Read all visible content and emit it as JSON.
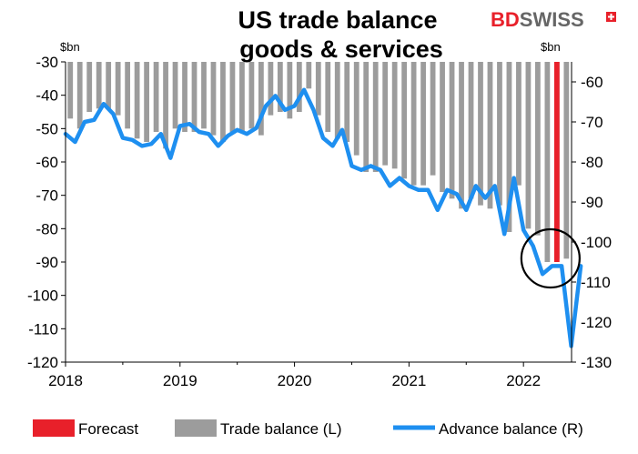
{
  "brand": {
    "part1": "BD",
    "part2": "SWISS"
  },
  "colors": {
    "trade": "#9c9c9c",
    "forecast": "#e8202a",
    "advance": "#1e8ff0",
    "logo_red": "#e8202a"
  },
  "chart_data": {
    "type": "bar",
    "title_lines": [
      "US trade balance",
      "goods & services"
    ],
    "left_axis": {
      "unit": "$bn",
      "ylim": [
        -120,
        -30
      ],
      "ticks": [
        -30,
        -40,
        -50,
        -60,
        -70,
        -80,
        -90,
        -100,
        -110,
        -120
      ]
    },
    "right_axis": {
      "unit": "$bn",
      "ylim": [
        -130,
        -55
      ],
      "ticks": [
        -60,
        -70,
        -80,
        -90,
        -100,
        -110,
        -120,
        -130
      ]
    },
    "x_axis": {
      "ticks": [
        "2018",
        "2019",
        "2020",
        "2021",
        "2022"
      ],
      "range": [
        2018.0,
        2022.42
      ]
    },
    "legend": {
      "forecast": "Forecast",
      "trade": "Trade balance (L)",
      "advance": "Advance balance (R)"
    },
    "series": [
      {
        "name": "Trade balance (L)",
        "axis": "left",
        "start": 2018.0,
        "values": [
          -47,
          -50,
          -45,
          -44,
          -44,
          -46,
          -50,
          -53,
          -54,
          -51,
          -56,
          -50,
          -51,
          -51,
          -50,
          -52,
          -54,
          -51,
          -51,
          -50,
          -52,
          -46,
          -45,
          -47,
          -45,
          -38,
          -46,
          -51,
          -53,
          -54,
          -58,
          -63,
          -63,
          -61,
          -62,
          -65,
          -67,
          -67,
          -64,
          -69,
          -71,
          -74,
          -71,
          -73,
          -74,
          -73,
          -81,
          -67,
          -80,
          -82,
          -90,
          -89,
          -89
        ]
      },
      {
        "name": "Forecast",
        "axis": "left",
        "start": 2022.25,
        "values": [
          -90
        ]
      },
      {
        "name": "Advance balance (R)",
        "axis": "right",
        "start": 2018.0,
        "values": [
          -73,
          -75,
          -70,
          -69.5,
          -65.5,
          -68,
          -74,
          -74.5,
          -76,
          -75.5,
          -73,
          -79,
          -71,
          -70.5,
          -72.5,
          -73,
          -76,
          -73.5,
          -72,
          -73,
          -71.5,
          -66,
          -63.5,
          -67,
          -66,
          -62,
          -67,
          -74,
          -76,
          -72,
          -81,
          -82,
          -81,
          -82,
          -86,
          -84,
          -86,
          -87,
          -87,
          -92,
          -87,
          -88,
          -92,
          -86,
          -89,
          -86,
          -98,
          -84,
          -97,
          -101,
          -108,
          -106,
          -106,
          -126,
          -106
        ]
      }
    ],
    "annotation": {
      "type": "circle",
      "around": "Forecast"
    }
  }
}
